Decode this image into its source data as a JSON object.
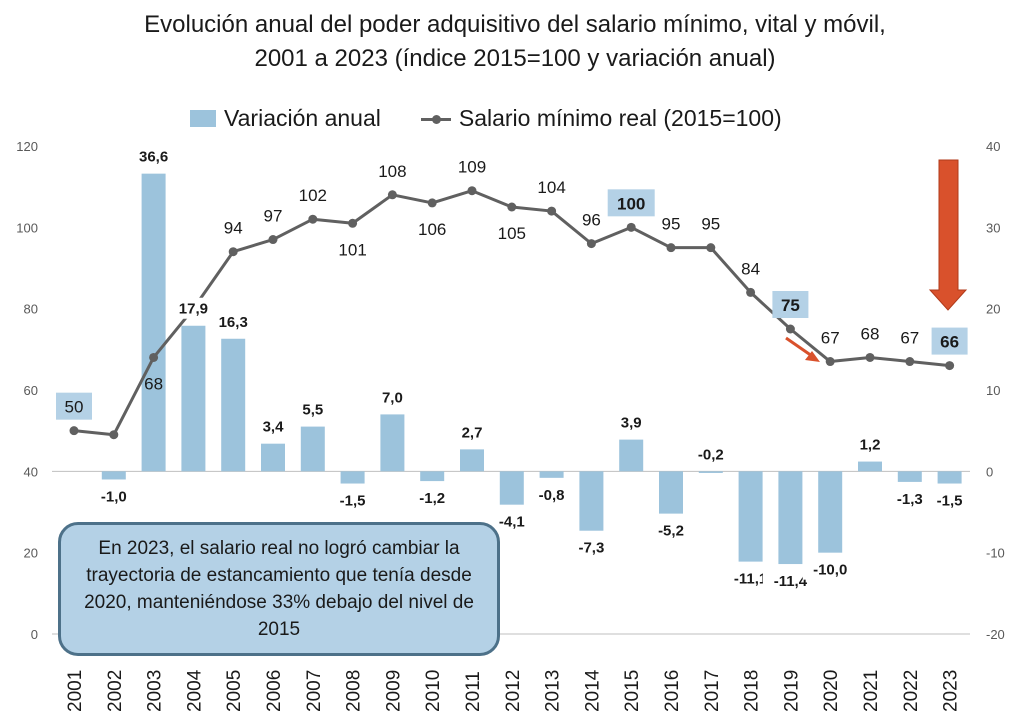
{
  "title_line1": "Evolución anual del poder adquisitivo del salario mínimo, vital y móvil,",
  "title_line2": "2001 a 2023 (índice 2015=100 y variación anual)",
  "legend": {
    "bar_label": "Variación anual",
    "line_label": "Salario mínimo real (2015=100)"
  },
  "callout_text": "En 2023, el salario real no logró cambiar la trayectoria de estancamiento que tenía desde 2020, manteniéndose 33% debajo del nivel de 2015",
  "colors": {
    "bar": "#9cc3dc",
    "line": "#606060",
    "highlight_label_bg": "#b4d1e6",
    "arrow": "#d9512c",
    "axis": "#bfbfbf"
  },
  "chart_data": {
    "type": "bar",
    "categories": [
      "2001",
      "2002",
      "2003",
      "2004",
      "2005",
      "2006",
      "2007",
      "2008",
      "2009",
      "2010",
      "2011",
      "2012",
      "2013",
      "2014",
      "2015",
      "2016",
      "2017",
      "2018",
      "2019",
      "2020",
      "2021",
      "2022",
      "2023"
    ],
    "series": [
      {
        "name": "Variación anual",
        "type": "bar",
        "axis": "right",
        "values": [
          null,
          -1.0,
          36.6,
          17.9,
          16.3,
          3.4,
          5.5,
          -1.5,
          7.0,
          -1.2,
          2.7,
          -4.1,
          -0.8,
          -7.3,
          3.9,
          -5.2,
          -0.2,
          -11.1,
          -11.4,
          -10.0,
          1.2,
          -1.3,
          -1.5
        ],
        "labels": [
          "",
          "-1,0",
          "36,6",
          "17,9",
          "16,3",
          "3,4",
          "5,5",
          "-1,5",
          "7,0",
          "-1,2",
          "2,7",
          "-4,1",
          "-0,8",
          "-7,3",
          "3,9",
          "-5,2",
          "-0,2",
          "-11,1",
          "-11,4",
          "-10,0",
          "1,2",
          "-1,3",
          "-1,5"
        ]
      },
      {
        "name": "Salario mínimo real (2015=100)",
        "type": "line",
        "axis": "left",
        "values": [
          50,
          49,
          68,
          80,
          94,
          97,
          102,
          101,
          108,
          106,
          109,
          105,
          104,
          96,
          100,
          95,
          95,
          84,
          75,
          67,
          68,
          67,
          66
        ],
        "labels": [
          "50",
          "",
          "68",
          "",
          "94",
          "97",
          "102",
          "101",
          "108",
          "106",
          "109",
          "105",
          "104",
          "96",
          "100",
          "95",
          "95",
          "84",
          "75",
          "67",
          "68",
          "67",
          "66"
        ],
        "highlighted": [
          "2001",
          "2015",
          "2019",
          "2023"
        ]
      }
    ],
    "y_left": {
      "ylim": [
        0,
        120
      ],
      "ticks": [
        "0",
        "20",
        "40",
        "60",
        "80",
        "100",
        "120"
      ]
    },
    "y_right": {
      "ylim": [
        -20,
        40
      ],
      "ticks": [
        "-20",
        "-10",
        "0",
        "10",
        "20",
        "30",
        "40"
      ]
    },
    "grid": false,
    "legend_position": "top"
  }
}
